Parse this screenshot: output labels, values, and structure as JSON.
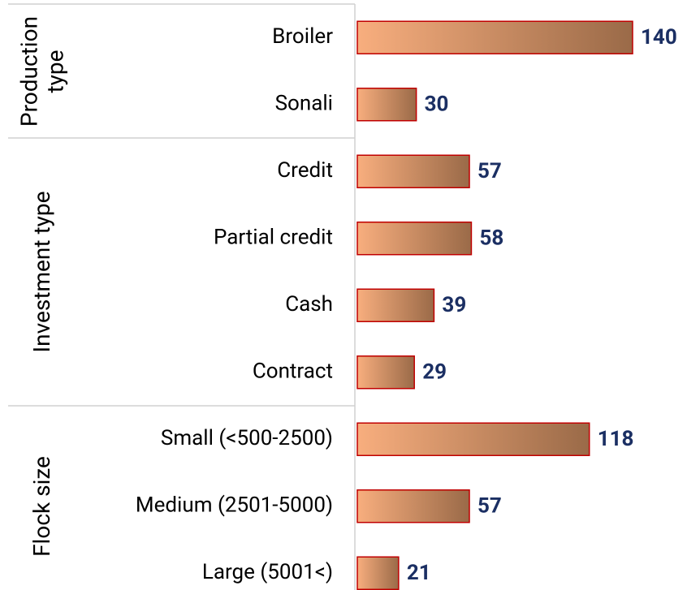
{
  "chart_data": {
    "type": "bar",
    "groups": [
      {
        "label": "Production type",
        "categories": [
          "Broiler",
          "Sonali"
        ],
        "values": [
          140,
          30
        ]
      },
      {
        "label": "Investment type",
        "categories": [
          "Credit",
          "Partial credit",
          "Cash",
          "Contract"
        ],
        "values": [
          57,
          58,
          39,
          29
        ]
      },
      {
        "label": "Flock size",
        "categories": [
          "Small (<500-2500)",
          "Medium (2501-5000)",
          "Large (5001<)"
        ],
        "values": [
          118,
          57,
          21
        ]
      }
    ],
    "color": [
      "#f8ae7e",
      "#9a6a48"
    ],
    "edge_color": "#c00000",
    "label_color": "#1b2f63"
  }
}
